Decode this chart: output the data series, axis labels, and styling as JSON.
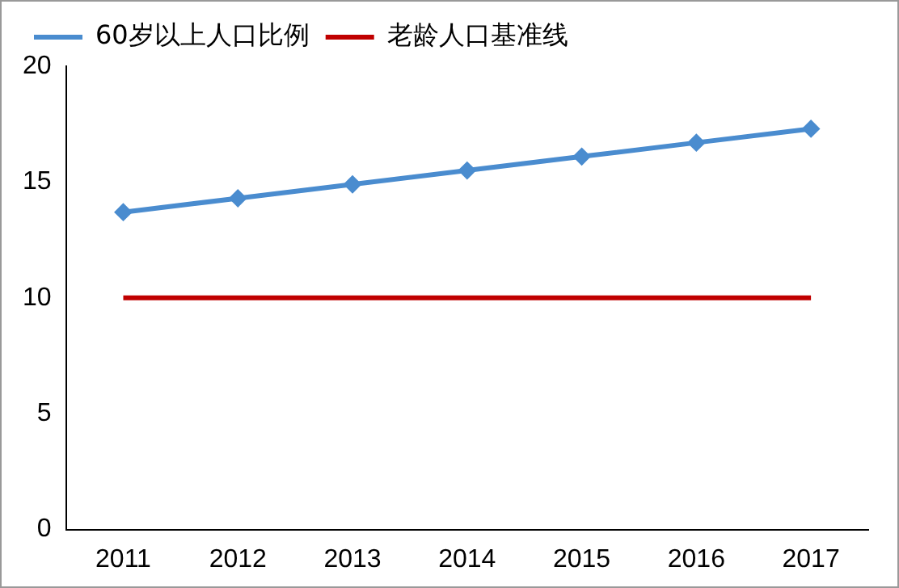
{
  "chart_data": {
    "type": "line",
    "categories": [
      "2011",
      "2012",
      "2013",
      "2014",
      "2015",
      "2016",
      "2017"
    ],
    "series": [
      {
        "name": "60岁以上人口比例",
        "color": "#4a8ccf",
        "values": [
          13.7,
          14.3,
          14.9,
          15.5,
          16.1,
          16.7,
          17.3
        ],
        "marker": "diamond"
      },
      {
        "name": "老龄人口基准线",
        "color": "#c00000",
        "values": [
          10,
          10,
          10,
          10,
          10,
          10,
          10
        ],
        "marker": "none"
      }
    ],
    "ylim": [
      0,
      20
    ],
    "yticks": [
      0,
      5,
      10,
      15,
      20
    ],
    "grid": false,
    "legend": "top",
    "line_style": "solid"
  }
}
